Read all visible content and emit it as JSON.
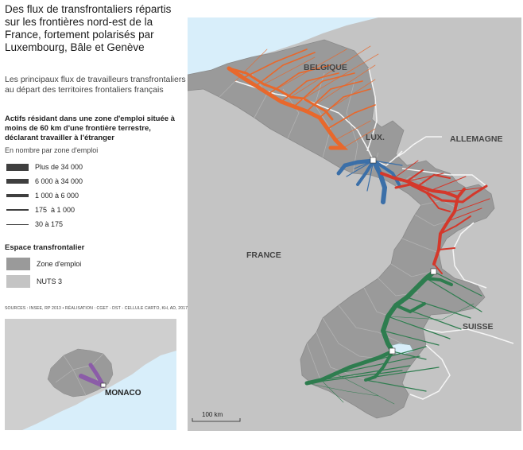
{
  "title": "Des flux de transfrontaliers répartis sur les frontières nord-est de la France, fortement polarisés par Luxembourg, Bâle et Genève",
  "subtitle": "Les principaux flux de travailleurs transfrontaliers au départ des territoires frontaliers français",
  "legend": {
    "heading": "Actifs résidant dans une zone d'emploi située à moins de 60 km d'une frontière terrestre, déclarant travailler à l'étranger",
    "unit": "En nombre par zone d'emploi",
    "flow_classes": [
      {
        "label": "Plus de 34 000"
      },
      {
        "label": "6 000 à 34 000"
      },
      {
        "label": "1 000 à 6 000"
      },
      {
        "label": "175  à 1 000"
      },
      {
        "label": "30 à 175"
      }
    ],
    "space_heading": "Espace transfrontalier",
    "space_items": [
      {
        "label": "Zone d'emploi",
        "color": "#9a9a9a"
      },
      {
        "label": "NUTS 3",
        "color": "#c4c4c4"
      }
    ]
  },
  "sources": "SOURCES : INSEE, RP 2013 • RÉALISATION : CGET - DST - CELLULE CARTO, KH, AD, 2017",
  "map": {
    "labels": {
      "belgique": "BELGIQUE",
      "lux": "LUX.",
      "allemagne": "ALLEMAGNE",
      "france": "FRANCE",
      "suisse": "SUISSE",
      "monaco": "MONACO"
    },
    "scale": "100 km",
    "colors": {
      "sea": "#d8eefa",
      "land_outside": "#c4c4c4",
      "zone_emploi": "#9a9a9a",
      "belgium_flows": "#e8682c",
      "luxembourg_flows": "#3b6fa8",
      "germany_flows": "#d4382b",
      "switzerland_flows": "#2e7d4f",
      "monaco_flows": "#8b5ca8"
    }
  }
}
